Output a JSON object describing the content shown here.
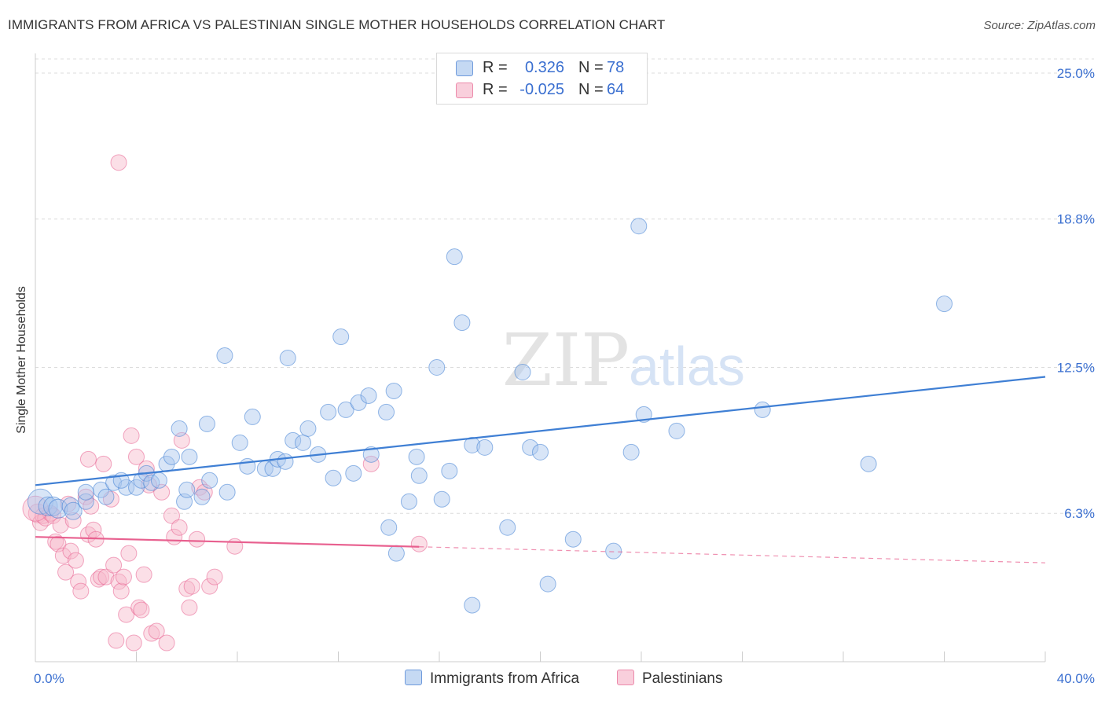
{
  "header": {
    "title": "IMMIGRANTS FROM AFRICA VS PALESTINIAN SINGLE MOTHER HOUSEHOLDS CORRELATION CHART",
    "source": "Source: ZipAtlas.com"
  },
  "watermark": {
    "zip": "ZIP",
    "atlas": "atlas"
  },
  "legend": {
    "rows": [
      {
        "r_label": "R =",
        "r_value": "0.326",
        "n_label": "N =",
        "n_value": "78",
        "color": "#a9c6ee"
      },
      {
        "r_label": "R =",
        "r_value": "-0.025",
        "n_label": "N =",
        "n_value": "64",
        "color": "#f6b7c9"
      }
    ]
  },
  "bottom_legend": {
    "items": [
      {
        "label": "Immigrants from Africa",
        "color": "#a9c6ee"
      },
      {
        "label": "Palestinians",
        "color": "#f6b7c9"
      }
    ]
  },
  "colors": {
    "blue": "#3f7fd4",
    "blue_fill": "#a9c6ee",
    "pink": "#e8608f",
    "pink_fill": "#f6b7c9",
    "axis_label": "#3a6fd0",
    "grid": "#dcdcdc"
  },
  "chart_data": {
    "type": "scatter",
    "title": "IMMIGRANTS FROM AFRICA VS PALESTINIAN SINGLE MOTHER HOUSEHOLDS CORRELATION CHART",
    "xlabel": "",
    "ylabel": "Single Mother Households",
    "xlim": [
      0,
      40
    ],
    "ylim": [
      0,
      25.6
    ],
    "x_tick_labels": [
      "0.0%",
      "40.0%"
    ],
    "y_tick_values": [
      6.3,
      12.5,
      18.8,
      25.0
    ],
    "y_tick_labels": [
      "6.3%",
      "12.5%",
      "18.8%",
      "25.0%"
    ],
    "grid": true,
    "legend_position": "top-center",
    "series": [
      {
        "name": "Immigrants from Africa",
        "color": "#3f7fd4",
        "trend": {
          "x": [
            0,
            40
          ],
          "y": [
            7.5,
            12.1
          ],
          "style": "solid"
        },
        "points": [
          [
            0.2,
            6.8
          ],
          [
            0.5,
            6.6
          ],
          [
            0.7,
            6.6
          ],
          [
            0.9,
            6.5
          ],
          [
            1.4,
            6.6
          ],
          [
            1.5,
            6.4
          ],
          [
            2.0,
            6.8
          ],
          [
            2.6,
            7.3
          ],
          [
            2.8,
            7.0
          ],
          [
            2.0,
            7.2
          ],
          [
            3.1,
            7.6
          ],
          [
            3.6,
            7.4
          ],
          [
            3.4,
            7.7
          ],
          [
            4.0,
            7.4
          ],
          [
            4.2,
            7.7
          ],
          [
            4.4,
            8.0
          ],
          [
            4.6,
            7.6
          ],
          [
            4.9,
            7.7
          ],
          [
            5.2,
            8.4
          ],
          [
            5.4,
            8.7
          ],
          [
            5.7,
            9.9
          ],
          [
            5.9,
            6.8
          ],
          [
            6.0,
            7.3
          ],
          [
            6.1,
            8.7
          ],
          [
            6.6,
            7.0
          ],
          [
            6.8,
            10.1
          ],
          [
            6.9,
            7.7
          ],
          [
            7.5,
            13.0
          ],
          [
            7.6,
            7.2
          ],
          [
            8.1,
            9.3
          ],
          [
            8.4,
            8.3
          ],
          [
            8.6,
            10.4
          ],
          [
            9.1,
            8.2
          ],
          [
            9.4,
            8.2
          ],
          [
            9.6,
            8.6
          ],
          [
            9.9,
            8.5
          ],
          [
            10.0,
            12.9
          ],
          [
            10.2,
            9.4
          ],
          [
            10.6,
            9.3
          ],
          [
            10.8,
            9.9
          ],
          [
            11.2,
            8.8
          ],
          [
            11.6,
            10.6
          ],
          [
            11.8,
            7.8
          ],
          [
            12.1,
            13.8
          ],
          [
            12.3,
            10.7
          ],
          [
            12.6,
            8.0
          ],
          [
            12.8,
            11.0
          ],
          [
            13.2,
            11.3
          ],
          [
            13.3,
            8.8
          ],
          [
            13.9,
            10.6
          ],
          [
            14.0,
            5.7
          ],
          [
            14.2,
            11.5
          ],
          [
            14.3,
            4.6
          ],
          [
            14.8,
            6.8
          ],
          [
            15.1,
            8.7
          ],
          [
            15.2,
            7.9
          ],
          [
            15.9,
            12.5
          ],
          [
            16.1,
            6.9
          ],
          [
            16.4,
            8.1
          ],
          [
            16.6,
            17.2
          ],
          [
            16.9,
            14.4
          ],
          [
            17.3,
            9.2
          ],
          [
            17.3,
            2.4
          ],
          [
            17.8,
            9.1
          ],
          [
            18.7,
            5.7
          ],
          [
            19.3,
            12.3
          ],
          [
            19.6,
            9.1
          ],
          [
            20.0,
            8.9
          ],
          [
            20.3,
            3.3
          ],
          [
            21.3,
            5.2
          ],
          [
            22.9,
            4.7
          ],
          [
            23.6,
            8.9
          ],
          [
            23.9,
            18.5
          ],
          [
            24.1,
            10.5
          ],
          [
            25.4,
            9.8
          ],
          [
            28.8,
            10.7
          ],
          [
            33.0,
            8.4
          ],
          [
            36.0,
            15.2
          ]
        ],
        "sizes": [
          16,
          12,
          12,
          12,
          11,
          11,
          10,
          10,
          10,
          10,
          10,
          10,
          10,
          10,
          10,
          10,
          10,
          10,
          10,
          10,
          10,
          10,
          10,
          10,
          10,
          10,
          10,
          10,
          10,
          10,
          10,
          10,
          10,
          10,
          10,
          10,
          10,
          10,
          10,
          10,
          10,
          10,
          10,
          10,
          10,
          10,
          10,
          10,
          10,
          10,
          10,
          10,
          10,
          10,
          10,
          10,
          10,
          10,
          10,
          10,
          10,
          10,
          10,
          10,
          10,
          10,
          10,
          10,
          10,
          10,
          10,
          10,
          10,
          10,
          10,
          10,
          10,
          10
        ]
      },
      {
        "name": "Palestinians",
        "color": "#e8608f",
        "trend": {
          "x": [
            0,
            40
          ],
          "y": [
            5.3,
            4.2
          ],
          "style": "solid-then-dashed",
          "solid_until": 15.2
        },
        "points": [
          [
            0.1,
            6.3
          ],
          [
            0.2,
            5.9
          ],
          [
            0.3,
            6.2
          ],
          [
            0.4,
            6.1
          ],
          [
            0.6,
            6.3
          ],
          [
            0.7,
            6.2
          ],
          [
            0.8,
            5.1
          ],
          [
            0.9,
            5.0
          ],
          [
            1.0,
            5.8
          ],
          [
            1.1,
            4.5
          ],
          [
            1.2,
            3.8
          ],
          [
            1.3,
            6.7
          ],
          [
            1.4,
            4.7
          ],
          [
            1.5,
            6.0
          ],
          [
            1.6,
            4.3
          ],
          [
            1.7,
            3.4
          ],
          [
            1.8,
            3.0
          ],
          [
            2.0,
            7.0
          ],
          [
            2.1,
            5.4
          ],
          [
            2.1,
            8.6
          ],
          [
            2.2,
            6.6
          ],
          [
            2.3,
            5.6
          ],
          [
            2.4,
            5.2
          ],
          [
            2.5,
            3.5
          ],
          [
            2.6,
            3.6
          ],
          [
            2.7,
            8.4
          ],
          [
            2.8,
            3.6
          ],
          [
            3.0,
            6.9
          ],
          [
            3.1,
            4.1
          ],
          [
            3.2,
            0.9
          ],
          [
            3.3,
            3.4
          ],
          [
            3.4,
            3.0
          ],
          [
            3.5,
            3.6
          ],
          [
            3.6,
            2.0
          ],
          [
            3.7,
            4.6
          ],
          [
            3.8,
            9.6
          ],
          [
            3.9,
            0.8
          ],
          [
            4.0,
            8.7
          ],
          [
            4.1,
            2.3
          ],
          [
            4.2,
            2.2
          ],
          [
            4.3,
            3.7
          ],
          [
            4.4,
            8.2
          ],
          [
            4.5,
            7.5
          ],
          [
            4.6,
            1.2
          ],
          [
            4.8,
            1.3
          ],
          [
            5.0,
            7.2
          ],
          [
            5.2,
            0.8
          ],
          [
            5.4,
            6.2
          ],
          [
            5.5,
            5.3
          ],
          [
            5.7,
            5.7
          ],
          [
            5.8,
            9.4
          ],
          [
            6.0,
            3.1
          ],
          [
            6.1,
            2.3
          ],
          [
            6.2,
            3.2
          ],
          [
            6.4,
            5.2
          ],
          [
            6.5,
            7.4
          ],
          [
            6.7,
            7.2
          ],
          [
            6.9,
            3.2
          ],
          [
            7.1,
            3.6
          ],
          [
            7.9,
            4.9
          ],
          [
            3.3,
            21.2
          ],
          [
            13.3,
            8.4
          ],
          [
            15.2,
            5.0
          ],
          [
            0.0,
            6.5
          ]
        ],
        "sizes": [
          12,
          10,
          10,
          10,
          10,
          10,
          10,
          10,
          10,
          10,
          10,
          10,
          10,
          10,
          10,
          10,
          10,
          10,
          10,
          10,
          10,
          10,
          10,
          10,
          10,
          10,
          10,
          10,
          10,
          10,
          10,
          10,
          10,
          10,
          10,
          10,
          10,
          10,
          10,
          10,
          10,
          10,
          10,
          10,
          10,
          10,
          10,
          10,
          10,
          10,
          10,
          10,
          10,
          10,
          10,
          10,
          10,
          10,
          10,
          10,
          10,
          10,
          10,
          16
        ]
      }
    ]
  }
}
